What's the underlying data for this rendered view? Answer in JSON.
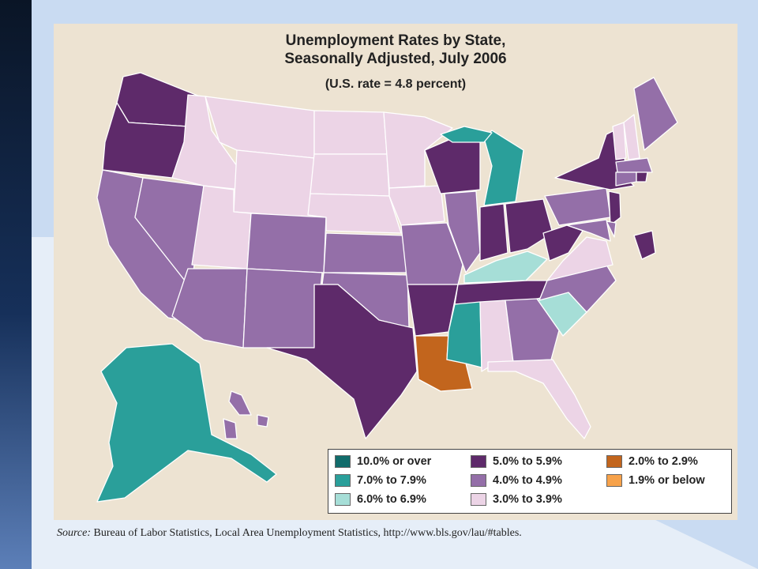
{
  "title_line1": "Unemployment Rates by State,",
  "title_line2": "Seasonally Adjusted, July 2006",
  "subtitle": "(U.S. rate = 4.8 percent)",
  "legend": [
    {
      "label": "10.0% or over",
      "color": "#116c6b"
    },
    {
      "label": "7.0% to 7.9%",
      "color": "#2a9f9a"
    },
    {
      "label": "6.0% to 6.9%",
      "color": "#a6ded7"
    },
    {
      "label": "5.0% to 5.9%",
      "color": "#5e2a6a"
    },
    {
      "label": "4.0% to 4.9%",
      "color": "#946fa8"
    },
    {
      "label": "3.0% to 3.9%",
      "color": "#ecd4e6"
    },
    {
      "label": "2.0% to 2.9%",
      "color": "#c2651d"
    },
    {
      "label": "1.9% or below",
      "color": "#f7a24a"
    }
  ],
  "source_prefix": "Source:",
  "source_text": "Bureau of Labor Statistics, Local Area Unemployment Statistics, http://www.bls.gov/lau/#tables.",
  "state_categories": {
    "WA": "5.0% to 5.9%",
    "OR": "5.0% to 5.9%",
    "CA": "4.0% to 4.9%",
    "NV": "4.0% to 4.9%",
    "ID": "3.0% to 3.9%",
    "MT": "3.0% to 3.9%",
    "WY": "3.0% to 3.9%",
    "UT": "3.0% to 3.9%",
    "AZ": "4.0% to 4.9%",
    "CO": "4.0% to 4.9%",
    "NM": "4.0% to 4.9%",
    "ND": "3.0% to 3.9%",
    "SD": "3.0% to 3.9%",
    "NE": "3.0% to 3.9%",
    "KS": "4.0% to 4.9%",
    "OK": "4.0% to 4.9%",
    "TX": "5.0% to 5.9%",
    "MN": "3.0% to 3.9%",
    "IA": "3.0% to 3.9%",
    "MO": "4.0% to 4.9%",
    "AR": "5.0% to 5.9%",
    "LA": "2.0% to 2.9%",
    "WI": "5.0% to 5.9%",
    "IL": "4.0% to 4.9%",
    "MI": "7.0% to 7.9%",
    "IN": "5.0% to 5.9%",
    "OH": "5.0% to 5.9%",
    "KY": "6.0% to 6.9%",
    "TN": "5.0% to 5.9%",
    "MS": "7.0% to 7.9%",
    "AL": "3.0% to 3.9%",
    "GA": "4.0% to 4.9%",
    "FL": "3.0% to 3.9%",
    "SC": "6.0% to 6.9%",
    "NC": "4.0% to 4.9%",
    "VA": "3.0% to 3.9%",
    "WV": "5.0% to 5.9%",
    "PA": "4.0% to 4.9%",
    "NY": "5.0% to 5.9%",
    "NJ": "5.0% to 5.9%",
    "DE": "4.0% to 4.9%",
    "MD": "4.0% to 4.9%",
    "DC": "5.0% to 5.9%",
    "VT": "3.0% to 3.9%",
    "NH": "3.0% to 3.9%",
    "ME": "4.0% to 4.9%",
    "MA": "4.0% to 4.9%",
    "CT": "4.0% to 4.9%",
    "RI": "5.0% to 5.9%",
    "AK": "7.0% to 7.9%",
    "HI": "4.0% to 4.9%"
  }
}
